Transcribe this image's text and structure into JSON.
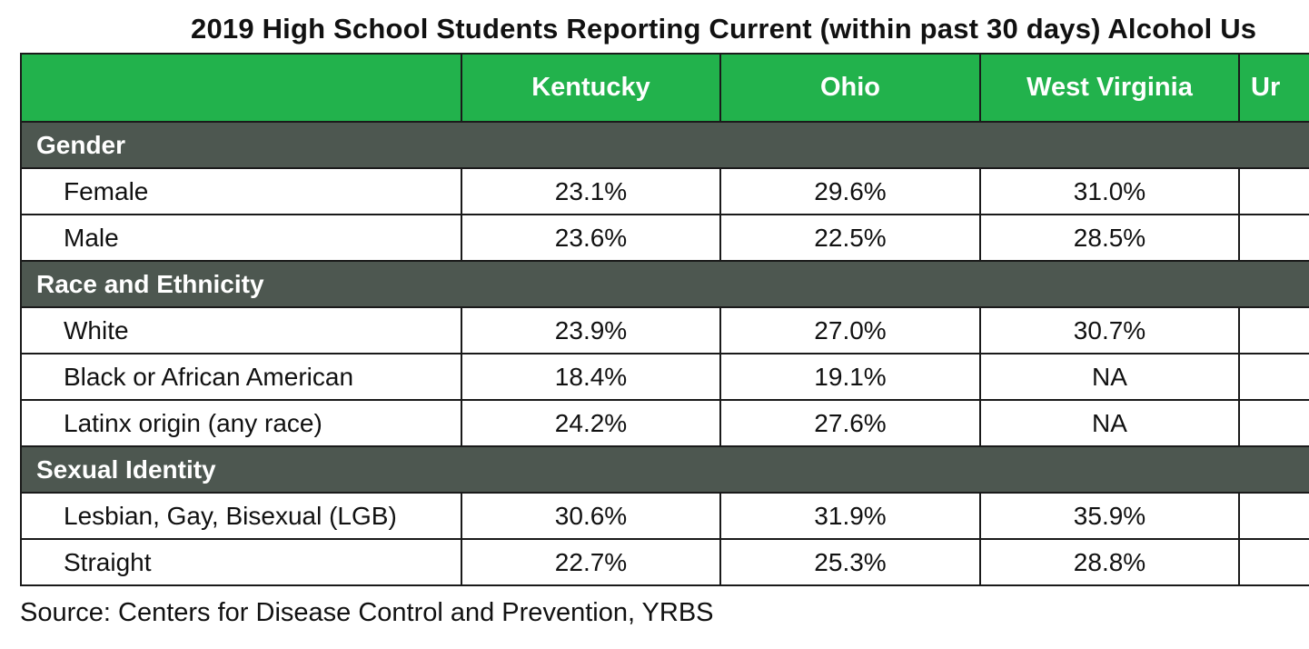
{
  "title": "2019 High School Students Reporting Current (within past 30 days) Alcohol Us",
  "columns": [
    "",
    "Kentucky",
    "Ohio",
    "West Virginia",
    "Ur"
  ],
  "sections": [
    {
      "name": "Gender",
      "rows": [
        {
          "label": "Female",
          "values": [
            "23.1%",
            "29.6%",
            "31.0%",
            ""
          ]
        },
        {
          "label": "Male",
          "values": [
            "23.6%",
            "22.5%",
            "28.5%",
            ""
          ]
        }
      ]
    },
    {
      "name": "Race and Ethnicity",
      "rows": [
        {
          "label": "White",
          "values": [
            "23.9%",
            "27.0%",
            "30.7%",
            ""
          ]
        },
        {
          "label": "Black or African American",
          "values": [
            "18.4%",
            "19.1%",
            "NA",
            ""
          ]
        },
        {
          "label": "Latinx origin (any race)",
          "values": [
            "24.2%",
            "27.6%",
            "NA",
            ""
          ]
        }
      ]
    },
    {
      "name": "Sexual Identity",
      "rows": [
        {
          "label": "Lesbian, Gay, Bisexual (LGB)",
          "values": [
            "30.6%",
            "31.9%",
            "35.9%",
            ""
          ]
        },
        {
          "label": "Straight",
          "values": [
            "22.7%",
            "25.3%",
            "28.8%",
            ""
          ]
        }
      ]
    }
  ],
  "source": "Source: Centers for Disease Control and Prevention, YRBS",
  "colors": {
    "header_bg": "#22b24c",
    "section_bg": "#4d5750"
  }
}
